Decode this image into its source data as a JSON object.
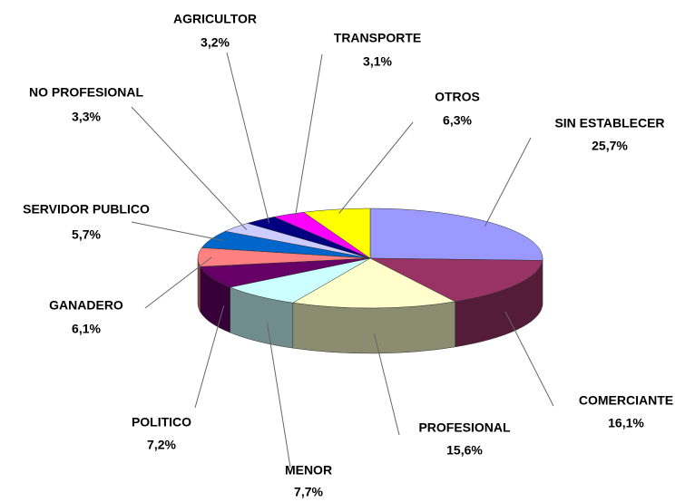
{
  "chart_data": {
    "type": "pie",
    "categories": [
      "SIN ESTABLECER",
      "COMERCIANTE",
      "PROFESIONAL",
      "MENOR",
      "POLITICO",
      "GANADERO",
      "SERVIDOR PUBLICO",
      "NO PROFESIONAL",
      "AGRICULTOR",
      "TRANSPORTE",
      "OTROS"
    ],
    "values": [
      25.7,
      16.1,
      15.6,
      7.7,
      7.2,
      6.1,
      5.7,
      3.3,
      3.2,
      3.1,
      6.3
    ],
    "value_labels": [
      "25,7%",
      "16,1%",
      "15,6%",
      "7,7%",
      "7,2%",
      "6,1%",
      "5,7%",
      "3,3%",
      "3,2%",
      "3,1%",
      "6,3%"
    ],
    "colors": [
      "#9999ff",
      "#993366",
      "#ffffcc",
      "#ccffff",
      "#660066",
      "#ff8080",
      "#0066cc",
      "#ccccff",
      "#000080",
      "#ff00ff",
      "#ffff00"
    ]
  }
}
